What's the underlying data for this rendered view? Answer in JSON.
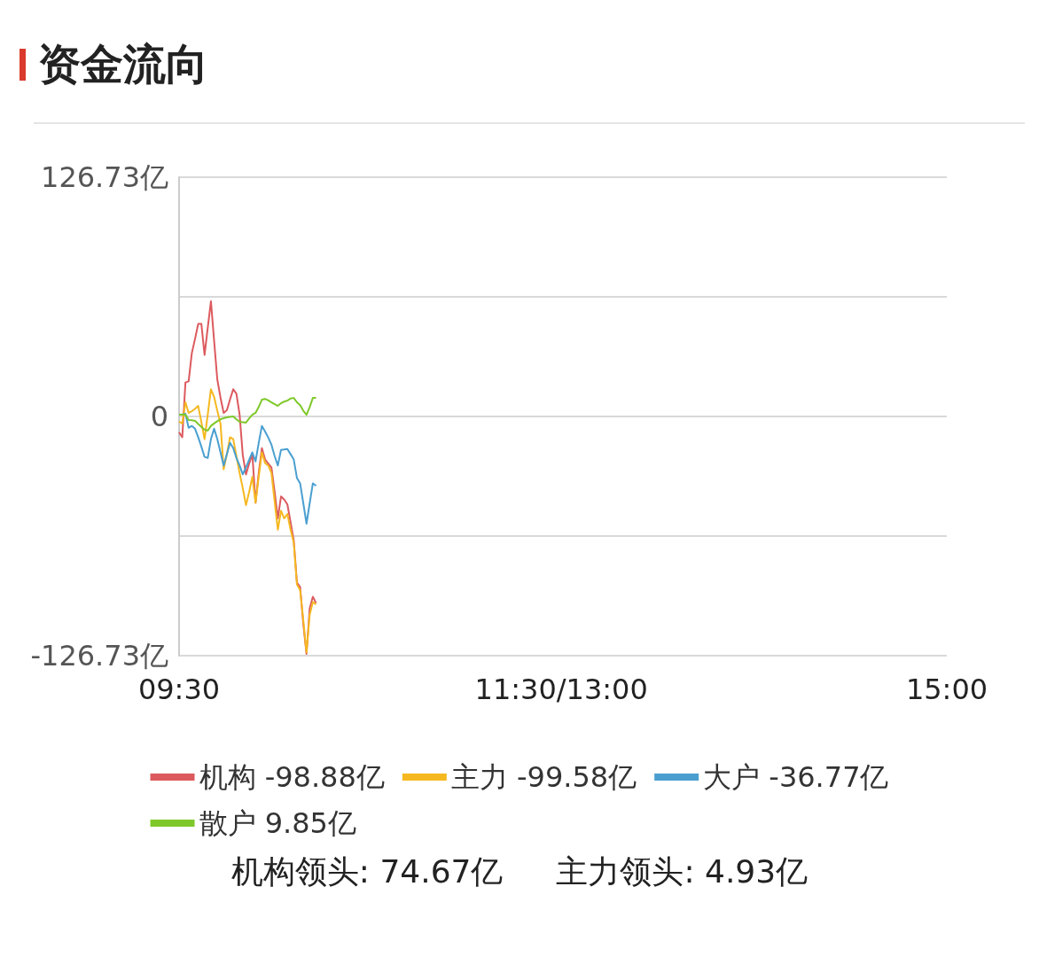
{
  "chart_data": {
    "type": "line",
    "title": "资金流向",
    "legend": "bottom",
    "grid": "y",
    "categories": [
      "09:30",
      null,
      null,
      null,
      null,
      null,
      null,
      null,
      null,
      null,
      null,
      null,
      null,
      null,
      null,
      null,
      null,
      null,
      null,
      null,
      null,
      null,
      null,
      null,
      null,
      null,
      null,
      null,
      null,
      null,
      null,
      null,
      null,
      null,
      null,
      null,
      null,
      null,
      null,
      null,
      null,
      null,
      null,
      null,
      null,
      null,
      null,
      null,
      null,
      null,
      null,
      null,
      null,
      null,
      null,
      null,
      null,
      null,
      null,
      null,
      null,
      null,
      null,
      null,
      null,
      null,
      null,
      null,
      null,
      null,
      null,
      null,
      null,
      null,
      null,
      null,
      null,
      null,
      null,
      null,
      null,
      null,
      null,
      null,
      null,
      null,
      null,
      null,
      null,
      null,
      null,
      null,
      null,
      null,
      null,
      null,
      null,
      null,
      null,
      null,
      null,
      null,
      null,
      null,
      null,
      null,
      null,
      null,
      null,
      null,
      null,
      null,
      null,
      null,
      null,
      null,
      null,
      null,
      null,
      null,
      "11:30/13:00",
      null,
      null,
      null,
      null,
      null,
      null,
      null,
      null,
      null,
      null,
      null,
      null,
      null,
      null,
      null,
      null,
      null,
      null,
      null,
      null,
      null,
      null,
      null,
      null,
      null,
      null,
      null,
      null,
      null,
      null,
      null,
      null,
      null,
      null,
      null,
      null,
      null,
      null,
      null,
      null,
      null,
      null,
      null,
      null,
      null,
      null,
      null,
      null,
      null,
      null,
      null,
      null,
      null,
      null,
      null,
      null,
      null,
      null,
      null,
      null,
      null,
      null,
      null,
      null,
      null,
      null,
      null,
      null,
      null,
      null,
      null,
      null,
      null,
      null,
      null,
      null,
      null,
      null,
      null,
      null,
      null,
      null,
      null,
      null,
      null,
      null,
      null,
      null,
      null,
      null,
      null,
      null,
      null,
      null,
      null,
      null,
      null,
      null,
      null,
      null,
      null,
      null,
      null,
      null,
      null,
      null,
      null,
      null,
      null,
      null,
      null,
      null,
      null,
      null,
      null,
      null,
      null,
      null,
      null,
      null,
      "15:00"
    ],
    "ylim": [
      -126.73,
      126.73
    ],
    "yticks": [
      {
        "value": -126.73,
        "label": "-126.73亿"
      },
      {
        "value": -63.365,
        "label": null
      },
      0,
      {
        "value": 63.365,
        "label": null
      },
      {
        "value": 126.73,
        "label": "126.73亿"
      }
    ],
    "series": [
      {
        "name": "机构 -98.88亿",
        "color": "#dc5a5e",
        "values": [
          -8.4,
          -11,
          18,
          18.6,
          33.5,
          41,
          49,
          49,
          32.6,
          47,
          61,
          40,
          19.6,
          10,
          1.9,
          3.3,
          9,
          14.4,
          12,
          1,
          -20.5,
          -30.7,
          -25,
          -20,
          -45.7,
          -30,
          -16.8,
          -22.8,
          -25,
          -27,
          -40,
          -54,
          -42.4,
          -44,
          -46.6,
          -56,
          -65.7,
          -88,
          -90.4,
          -110,
          -125.8,
          -101.6,
          -95.5,
          -98.88,
          null,
          null,
          null,
          null,
          null,
          null,
          null,
          null,
          null,
          null,
          null,
          null,
          null,
          null,
          null,
          null,
          null,
          null,
          null,
          null,
          null,
          null,
          null,
          null,
          null,
          null,
          null,
          null,
          null,
          null,
          null,
          null,
          null,
          null,
          null,
          null,
          null,
          null,
          null,
          null,
          null,
          null,
          null,
          null,
          null,
          null,
          null,
          null,
          null,
          null,
          null,
          null,
          null,
          null,
          null,
          null,
          null,
          null,
          null,
          null,
          null,
          null,
          null,
          null,
          null,
          null,
          null,
          null,
          null,
          null,
          null,
          null,
          null,
          null,
          null,
          null,
          null,
          null,
          null,
          null,
          null,
          null,
          null,
          null,
          null,
          null,
          null,
          null,
          null,
          null,
          null,
          null,
          null,
          null,
          null,
          null,
          null,
          null,
          null,
          null,
          null,
          null,
          null,
          null,
          null,
          null,
          null,
          null,
          null,
          null,
          null,
          null,
          null,
          null,
          null,
          null,
          null,
          null,
          null,
          null,
          null,
          null,
          null,
          null,
          null,
          null,
          null,
          null,
          null,
          null,
          null,
          null,
          null,
          null,
          null,
          null,
          null,
          null,
          null,
          null,
          null,
          null,
          null,
          null,
          null,
          null,
          null,
          null,
          null,
          null,
          null,
          null,
          null,
          null,
          null,
          null,
          null,
          null,
          null,
          null,
          null,
          null,
          null,
          null,
          null,
          null,
          null,
          null,
          null,
          null,
          null,
          null,
          null,
          null,
          null,
          null,
          null,
          null,
          null,
          null,
          null,
          null,
          null,
          null,
          null,
          null,
          null,
          null,
          null,
          null,
          null,
          null,
          null,
          null,
          null,
          null,
          null,
          null
        ]
      },
      {
        "name": "主力 -99.58亿",
        "color": "#f5b820",
        "values": [
          -2.8,
          -3.7,
          7.5,
          1.9,
          2.8,
          4,
          5.6,
          -3,
          -12,
          1,
          14.4,
          10.3,
          3,
          -3.7,
          -28,
          -20,
          -11,
          -12,
          -21,
          -30,
          -38,
          -47,
          -40,
          -32,
          -45.7,
          -32,
          -19,
          -24.7,
          -26,
          -30,
          -45,
          -60,
          -50,
          -54,
          -51.7,
          -60,
          -67,
          -89,
          -92,
          -108,
          -125,
          -105,
          -98.3,
          -99.58,
          null,
          null,
          null,
          null,
          null,
          null,
          null,
          null,
          null,
          null,
          null,
          null,
          null,
          null,
          null,
          null,
          null,
          null,
          null,
          null,
          null,
          null,
          null,
          null,
          null,
          null,
          null,
          null,
          null,
          null,
          null,
          null,
          null,
          null,
          null,
          null,
          null,
          null,
          null,
          null,
          null,
          null,
          null,
          null,
          null,
          null,
          null,
          null,
          null,
          null,
          null,
          null,
          null,
          null,
          null,
          null,
          null,
          null,
          null,
          null,
          null,
          null,
          null,
          null,
          null,
          null,
          null,
          null,
          null,
          null,
          null,
          null,
          null,
          null,
          null,
          null,
          null,
          null,
          null,
          null,
          null,
          null,
          null,
          null,
          null,
          null,
          null,
          null,
          null,
          null,
          null,
          null,
          null,
          null,
          null,
          null,
          null,
          null,
          null,
          null,
          null,
          null,
          null,
          null,
          null,
          null,
          null,
          null,
          null,
          null,
          null,
          null,
          null,
          null,
          null,
          null,
          null,
          null,
          null,
          null,
          null,
          null,
          null,
          null,
          null,
          null,
          null,
          null,
          null,
          null,
          null,
          null,
          null,
          null,
          null,
          null,
          null,
          null,
          null,
          null,
          null,
          null,
          null,
          null,
          null,
          null,
          null,
          null,
          null,
          null,
          null,
          null,
          null,
          null,
          null,
          null,
          null,
          null,
          null,
          null,
          null,
          null,
          null,
          null,
          null,
          null,
          null,
          null,
          null,
          null,
          null,
          null,
          null,
          null,
          null,
          null,
          null,
          null,
          null,
          null,
          null,
          null,
          null,
          null,
          null,
          null,
          null,
          null,
          null,
          null,
          null,
          null,
          null,
          null,
          null,
          null,
          null,
          null
        ]
      },
      {
        "name": "大户 -36.77亿",
        "color": "#4a9fd0",
        "values": [
          0.9,
          1,
          1.4,
          -6,
          -5,
          -6.5,
          -11,
          -16,
          -21.4,
          -22,
          -12,
          -6.5,
          -12,
          -19,
          -26,
          -20,
          -14,
          -16.8,
          -22,
          -26,
          -30.7,
          -27,
          -23,
          -19,
          -23.8,
          -14,
          -5,
          -8,
          -11.2,
          -15,
          -21,
          -26,
          -17.7,
          -17.5,
          -17.2,
          -20,
          -22.8,
          -32.6,
          -35.4,
          -46,
          -56.8,
          -46,
          -35.4,
          -36.77,
          null,
          null,
          null,
          null,
          null,
          null,
          null,
          null,
          null,
          null,
          null,
          null,
          null,
          null,
          null,
          null,
          null,
          null,
          null,
          null,
          null,
          null,
          null,
          null,
          null,
          null,
          null,
          null,
          null,
          null,
          null,
          null,
          null,
          null,
          null,
          null,
          null,
          null,
          null,
          null,
          null,
          null,
          null,
          null,
          null,
          null,
          null,
          null,
          null,
          null,
          null,
          null,
          null,
          null,
          null,
          null,
          null,
          null,
          null,
          null,
          null,
          null,
          null,
          null,
          null,
          null,
          null,
          null,
          null,
          null,
          null,
          null,
          null,
          null,
          null,
          null,
          null,
          null,
          null,
          null,
          null,
          null,
          null,
          null,
          null,
          null,
          null,
          null,
          null,
          null,
          null,
          null,
          null,
          null,
          null,
          null,
          null,
          null,
          null,
          null,
          null,
          null,
          null,
          null,
          null,
          null,
          null,
          null,
          null,
          null,
          null,
          null,
          null,
          null,
          null,
          null,
          null,
          null,
          null,
          null,
          null,
          null,
          null,
          null,
          null,
          null,
          null,
          null,
          null,
          null,
          null,
          null,
          null,
          null,
          null,
          null,
          null,
          null,
          null,
          null,
          null,
          null,
          null,
          null,
          null,
          null,
          null,
          null,
          null,
          null,
          null,
          null,
          null,
          null,
          null,
          null,
          null,
          null,
          null,
          null,
          null,
          null,
          null,
          null,
          null,
          null,
          null,
          null,
          null,
          null,
          null,
          null,
          null,
          null,
          null,
          null,
          null,
          null,
          null,
          null,
          null,
          null,
          null,
          null,
          null,
          null,
          null,
          null,
          null,
          null,
          null,
          null,
          null,
          null,
          null,
          null,
          null,
          null
        ]
      },
      {
        "name": "散户 9.85亿",
        "color": "#7ec82a",
        "values": [
          0.9,
          0.9,
          0.9,
          -1.9,
          -2,
          -2.3,
          -4,
          -5.5,
          -7,
          -7.5,
          -5,
          -3.7,
          -2.5,
          -1.5,
          -0.9,
          -0.5,
          -0.2,
          0,
          -1.5,
          -2.8,
          -3,
          -3.3,
          -1,
          0.9,
          1.9,
          5,
          8.9,
          9.3,
          8.5,
          7.5,
          6.5,
          5.6,
          7,
          7.9,
          8.4,
          9.5,
          9.8,
          7.5,
          6,
          3,
          0.9,
          5,
          9.8,
          9.85,
          null,
          null,
          null,
          null,
          null,
          null,
          null,
          null,
          null,
          null,
          null,
          null,
          null,
          null,
          null,
          null,
          null,
          null,
          null,
          null,
          null,
          null,
          null,
          null,
          null,
          null,
          null,
          null,
          null,
          null,
          null,
          null,
          null,
          null,
          null,
          null,
          null,
          null,
          null,
          null,
          null,
          null,
          null,
          null,
          null,
          null,
          null,
          null,
          null,
          null,
          null,
          null,
          null,
          null,
          null,
          null,
          null,
          null,
          null,
          null,
          null,
          null,
          null,
          null,
          null,
          null,
          null,
          null,
          null,
          null,
          null,
          null,
          null,
          null,
          null,
          null,
          null,
          null,
          null,
          null,
          null,
          null,
          null,
          null,
          null,
          null,
          null,
          null,
          null,
          null,
          null,
          null,
          null,
          null,
          null,
          null,
          null,
          null,
          null,
          null,
          null,
          null,
          null,
          null,
          null,
          null,
          null,
          null,
          null,
          null,
          null,
          null,
          null,
          null,
          null,
          null,
          null,
          null,
          null,
          null,
          null,
          null,
          null,
          null,
          null,
          null,
          null,
          null,
          null,
          null,
          null,
          null,
          null,
          null,
          null,
          null,
          null,
          null,
          null,
          null,
          null,
          null,
          null,
          null,
          null,
          null,
          null,
          null,
          null,
          null,
          null,
          null,
          null,
          null,
          null,
          null,
          null,
          null,
          null,
          null,
          null,
          null,
          null,
          null,
          null,
          null,
          null,
          null,
          null,
          null,
          null,
          null,
          null,
          null,
          null,
          null,
          null,
          null,
          null,
          null,
          null,
          null,
          null,
          null,
          null,
          null,
          null,
          null,
          null,
          null,
          null,
          null,
          null,
          null,
          null,
          null,
          null,
          null
        ]
      }
    ],
    "annotations": [
      "机构领头: 74.67亿",
      "主力领头: 4.93亿"
    ]
  }
}
